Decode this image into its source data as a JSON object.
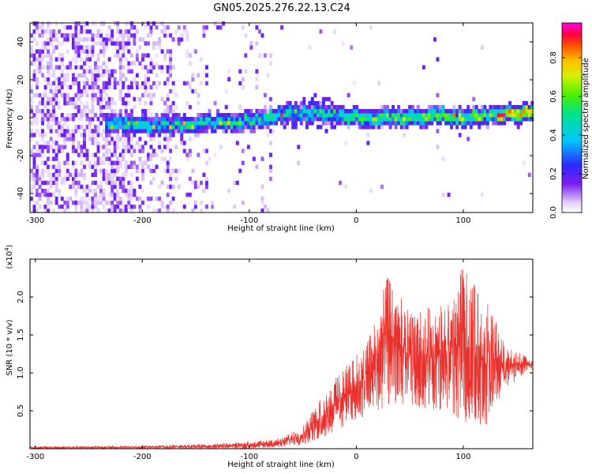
{
  "title": "GN05.2025.276.22.13.C24",
  "chart_data": [
    {
      "type": "heatmap",
      "name": "spectrogram",
      "xlabel": "Height of straight line (km)",
      "ylabel": "Frequency (Hz)",
      "xlim": [
        -305,
        165
      ],
      "ylim": [
        -50,
        50
      ],
      "xticks": [
        -300,
        -200,
        -100,
        0,
        100
      ],
      "yticks": [
        -40,
        -20,
        0,
        20,
        40
      ],
      "colorbar": {
        "label": "Normalized spectral amplitude",
        "range": [
          0,
          0.98
        ],
        "ticks": [
          0.0,
          0.2,
          0.4,
          0.6,
          0.8
        ]
      },
      "ridge": {
        "description": "Bright signal band centred near 0 Hz",
        "points": [
          {
            "x": -220,
            "y": -4
          },
          {
            "x": -180,
            "y": -5
          },
          {
            "x": -150,
            "y": -4
          },
          {
            "x": -120,
            "y": -3
          },
          {
            "x": -90,
            "y": -2
          },
          {
            "x": -70,
            "y": 1
          },
          {
            "x": -50,
            "y": 2
          },
          {
            "x": -20,
            "y": 0
          },
          {
            "x": 20,
            "y": -1
          },
          {
            "x": 40,
            "y": -1
          },
          {
            "x": 60,
            "y": 0
          },
          {
            "x": 80,
            "y": 0
          },
          {
            "x": 100,
            "y": -1
          },
          {
            "x": 120,
            "y": 0
          },
          {
            "x": 140,
            "y": 1
          },
          {
            "x": 160,
            "y": 2
          }
        ]
      }
    },
    {
      "type": "line",
      "name": "snr",
      "xlabel": "Height of straight line (km)",
      "ylabel": "SNR (10 * v/v)",
      "scale_label": "(x10",
      "scale_exp": "4",
      "color": "#e8302c",
      "xlim": [
        -305,
        165
      ],
      "ylim": [
        0,
        2.5
      ],
      "xticks": [
        -300,
        -200,
        -100,
        0,
        100
      ],
      "yticks": [
        "0.5",
        "1.0",
        "1.5",
        "2.0"
      ],
      "envelope": [
        {
          "x": -300,
          "lo": 0.0,
          "hi": 0.03
        },
        {
          "x": -200,
          "lo": 0.0,
          "hi": 0.04
        },
        {
          "x": -150,
          "lo": 0.0,
          "hi": 0.06
        },
        {
          "x": -100,
          "lo": 0.0,
          "hi": 0.09
        },
        {
          "x": -70,
          "lo": 0.02,
          "hi": 0.14
        },
        {
          "x": -50,
          "lo": 0.05,
          "hi": 0.3
        },
        {
          "x": -30,
          "lo": 0.15,
          "hi": 0.75
        },
        {
          "x": -10,
          "lo": 0.3,
          "hi": 1.1
        },
        {
          "x": 10,
          "lo": 0.45,
          "hi": 1.4
        },
        {
          "x": 30,
          "lo": 0.55,
          "hi": 2.3
        },
        {
          "x": 50,
          "lo": 0.55,
          "hi": 1.8
        },
        {
          "x": 80,
          "lo": 0.45,
          "hi": 1.9
        },
        {
          "x": 100,
          "lo": 0.35,
          "hi": 2.4
        },
        {
          "x": 120,
          "lo": 0.25,
          "hi": 2.0
        },
        {
          "x": 140,
          "lo": 0.8,
          "hi": 1.4
        },
        {
          "x": 165,
          "lo": 1.05,
          "hi": 1.15
        }
      ]
    }
  ]
}
